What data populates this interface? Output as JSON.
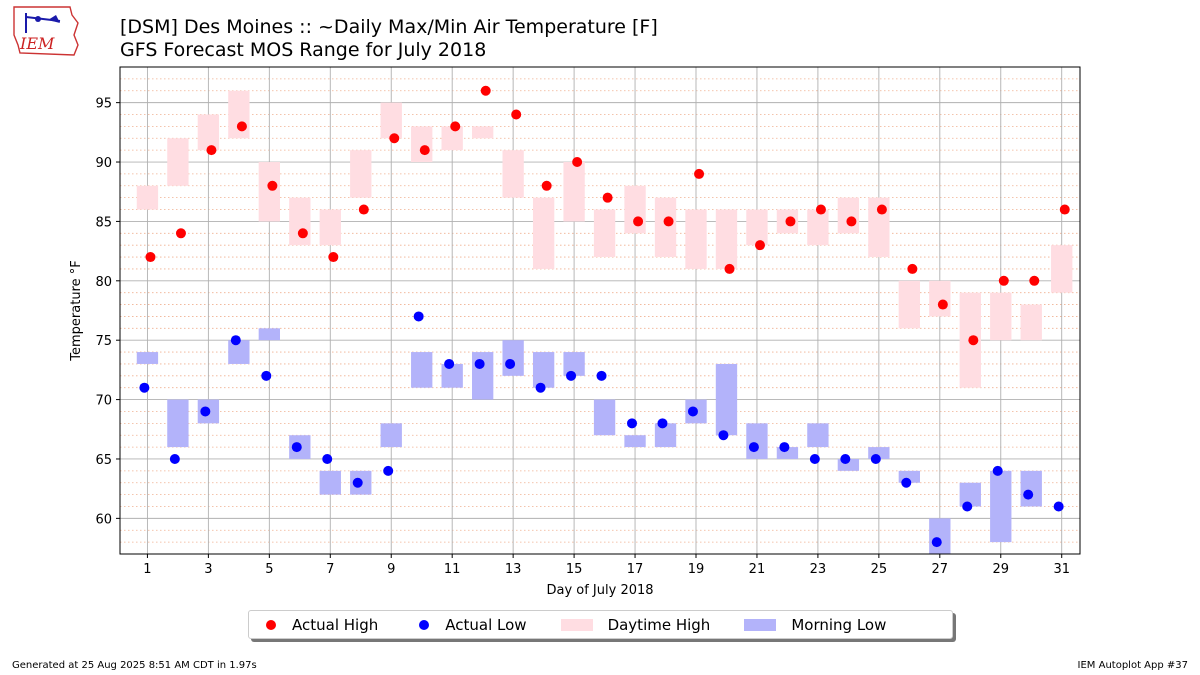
{
  "logo_text": "IEM",
  "title": "[DSM] Des Moines :: ~Daily Max/Min Air Temperature [F]",
  "subtitle": "GFS Forecast MOS Range for July 2018",
  "footer_left": "Generated at 25 Aug 2025 8:51 AM CDT in 1.97s",
  "footer_right": "IEM Autoplot App #37",
  "legend": {
    "actual_high": "Actual High",
    "actual_low": "Actual Low",
    "daytime_high": "Daytime High",
    "morning_low": "Morning Low"
  },
  "colors": {
    "actual_high": "#ff0000",
    "actual_low": "#0000ff",
    "daytime_high": "#ffdde2",
    "morning_low": "#b3b3fa"
  },
  "chart_data": {
    "type": "bar",
    "title": "[DSM] Des Moines :: ~Daily Max/Min Air Temperature [F]",
    "subtitle": "GFS Forecast MOS Range for July 2018",
    "xlabel": "Day of July 2018",
    "ylabel": "Temperature °F",
    "xlim": [
      0.1,
      31.6
    ],
    "ylim": [
      57,
      98
    ],
    "xticks": [
      1,
      3,
      5,
      7,
      9,
      11,
      13,
      15,
      17,
      19,
      21,
      23,
      25,
      27,
      29,
      31
    ],
    "yticks": [
      60,
      65,
      70,
      75,
      80,
      85,
      90,
      95
    ],
    "grid": true,
    "minor_grid_step": 1,
    "legend_position": "bottom-center",
    "series": [
      {
        "name": "Actual High",
        "kind": "point",
        "x": [
          1,
          2,
          3,
          4,
          5,
          6,
          7,
          8,
          9,
          10,
          11,
          12,
          13,
          14,
          15,
          16,
          17,
          18,
          19,
          20,
          21,
          22,
          23,
          24,
          25,
          26,
          27,
          28,
          29,
          30,
          31
        ],
        "values": [
          82,
          84,
          91,
          93,
          88,
          84,
          82,
          86,
          92,
          91,
          93,
          96,
          94,
          88,
          90,
          87,
          85,
          85,
          89,
          81,
          83,
          85,
          86,
          85,
          86,
          81,
          78,
          75,
          80,
          80,
          86
        ]
      },
      {
        "name": "Actual Low",
        "kind": "point",
        "x": [
          1,
          2,
          3,
          4,
          5,
          6,
          7,
          8,
          9,
          10,
          11,
          12,
          13,
          14,
          15,
          16,
          17,
          18,
          19,
          20,
          21,
          22,
          23,
          24,
          25,
          26,
          27,
          28,
          29,
          30,
          31
        ],
        "values": [
          71,
          65,
          69,
          75,
          72,
          66,
          65,
          63,
          64,
          77,
          73,
          73,
          73,
          71,
          72,
          72,
          68,
          68,
          69,
          67,
          66,
          66,
          65,
          65,
          65,
          63,
          58,
          61,
          64,
          62,
          61
        ]
      },
      {
        "name": "Daytime High",
        "kind": "range",
        "x": [
          1,
          2,
          3,
          4,
          5,
          6,
          7,
          8,
          9,
          10,
          11,
          12,
          13,
          14,
          15,
          16,
          17,
          18,
          19,
          20,
          21,
          22,
          23,
          24,
          25,
          26,
          27,
          28,
          29,
          30,
          31
        ],
        "low": [
          86,
          88,
          91,
          92,
          85,
          83,
          83,
          87,
          92,
          90,
          91,
          92,
          87,
          81,
          85,
          82,
          84,
          82,
          81,
          81,
          83,
          84,
          83,
          84,
          82,
          76,
          77,
          71,
          75,
          75,
          79
        ],
        "high": [
          88,
          92,
          94,
          96,
          90,
          87,
          86,
          91,
          95,
          93,
          93,
          93,
          91,
          87,
          90,
          86,
          88,
          87,
          86,
          86,
          86,
          86,
          86,
          87,
          87,
          80,
          80,
          79,
          79,
          78,
          83
        ]
      },
      {
        "name": "Morning Low",
        "kind": "range",
        "x": [
          1,
          2,
          3,
          4,
          5,
          6,
          7,
          8,
          9,
          10,
          11,
          12,
          13,
          14,
          15,
          16,
          17,
          18,
          19,
          20,
          21,
          22,
          23,
          24,
          25,
          26,
          27,
          28,
          29,
          30,
          31
        ],
        "low": [
          73,
          66,
          68,
          73,
          75,
          65,
          62,
          62,
          66,
          71,
          71,
          70,
          72,
          71,
          72,
          67,
          66,
          66,
          68,
          67,
          65,
          65,
          66,
          64,
          65,
          63,
          57,
          61,
          58,
          61,
          null
        ],
        "high": [
          74,
          70,
          70,
          75,
          76,
          67,
          64,
          64,
          68,
          74,
          73,
          74,
          75,
          74,
          74,
          70,
          67,
          68,
          70,
          73,
          68,
          66,
          68,
          65,
          66,
          64,
          60,
          63,
          64,
          64,
          null
        ]
      }
    ]
  }
}
